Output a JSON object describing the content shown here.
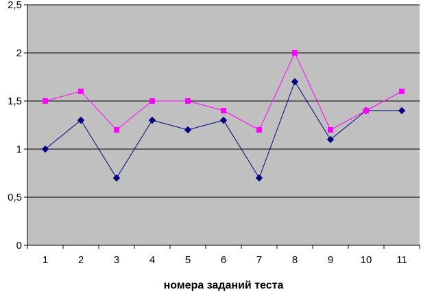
{
  "chart_data": {
    "type": "line",
    "title": "",
    "xlabel": "номера заданий теста",
    "ylabel": "",
    "categories": [
      "1",
      "2",
      "3",
      "4",
      "5",
      "6",
      "7",
      "8",
      "9",
      "10",
      "11"
    ],
    "ylim": [
      0,
      2.5
    ],
    "y_ticks": [
      "0",
      "0,5",
      "1",
      "1,5",
      "2",
      "2,5"
    ],
    "grid": true,
    "legend": "none",
    "plot_background": "#c0c0c0",
    "series": [
      {
        "color": "#000080",
        "marker": "diamond",
        "values": [
          1.0,
          1.3,
          0.7,
          1.3,
          1.2,
          1.3,
          0.7,
          1.7,
          1.1,
          1.4,
          1.4
        ]
      },
      {
        "color": "#ff00ff",
        "marker": "square",
        "values": [
          1.5,
          1.6,
          1.2,
          1.5,
          1.5,
          1.4,
          1.2,
          2.0,
          1.2,
          1.4,
          1.6
        ]
      }
    ]
  }
}
